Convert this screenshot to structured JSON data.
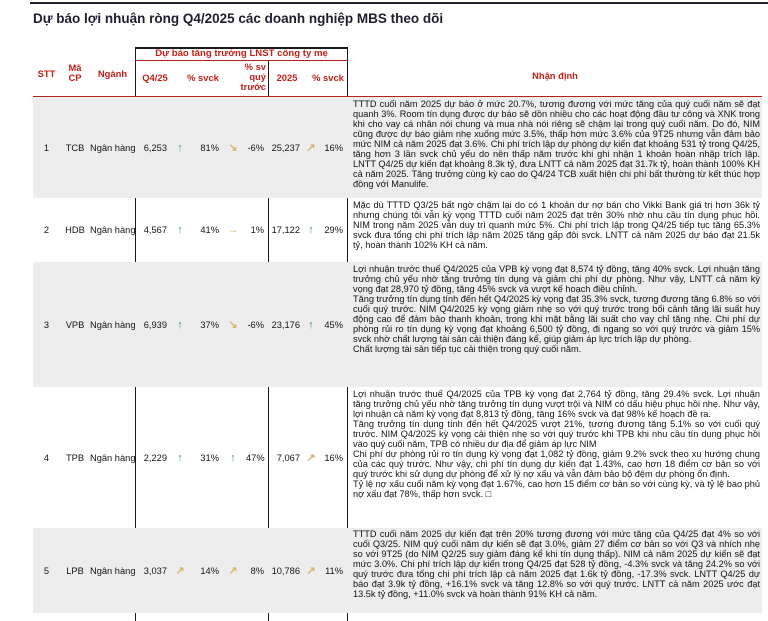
{
  "page": {
    "title": "Dự báo lợi nhuận ròng Q4/2025 các doanh nghiệp MBS theo dõi"
  },
  "colors": {
    "accent_red": "#C41F18",
    "arrow_green": "#45978A",
    "arrow_tan": "#D9B470",
    "row_shade_gray": "#EDEDED"
  },
  "table": {
    "headers": {
      "stt": "STT",
      "ma_cp": "Mã CP",
      "nganh": "Ngành",
      "group": "Dự báo tăng trưởng LNST công ty mẹ",
      "q4": "Q4/25",
      "svck": "% svck",
      "qoq": "% sv quý trước",
      "y2025": "2025",
      "svck2": "% svck",
      "nhan_dinh": "Nhận định"
    },
    "rows": [
      {
        "stt": "1",
        "code": "TCB",
        "sector": "Ngân hàng",
        "q4": "6,253",
        "q4_arrow": {
          "glyph": "↑",
          "tone": "g"
        },
        "svck": "81%",
        "qoq_arrow": {
          "glyph": "↘",
          "tone": "t"
        },
        "qoq": "-6%",
        "y2025": "25,237",
        "y_arrow": {
          "glyph": "↗",
          "tone": "t"
        },
        "y_svck": "16%",
        "comment": [
          "TTTD cuối năm 2025 dự báo ở mức 20.7%, tương đương với mức tăng của quý cuối năm sẽ đạt quanh 3%. Room tín dụng được dự báo sẽ dồn nhiều cho các hoạt động đầu tư công và XNK trong khi cho vay cá nhân nói chung và mua nhà nói riêng sẽ chậm lại trong quý cuối năm. Do đó, NIM cũng được dự báo giảm nhẹ xuống mức 3.5%, thấp hơn mức 3.6% của 9T25 nhưng vẫn đảm bảo mức NIM cả năm 2025 đạt 3.6%. Chi phí trích lập dự phòng dự kiến đạt khoảng 531 tỷ trong Q4/25, tăng hơn 3 lần svck chủ yếu do nền thấp năm trước khi ghi nhận 1 khoản hoàn nhập trích lập. LNTT Q4/25 dự kiến đạt khoảng 8.3k tỷ, đưa LNTT cả năm 2025 đạt 31.7k tỷ, hoàn thành 100% KH cả năm 2025. Tăng trưởng cùng kỳ cao do Q4/24 TCB xuất hiện chi phí bất thường từ kết thúc hợp đồng với Manulife."
        ]
      },
      {
        "stt": "2",
        "code": "HDB",
        "sector": "Ngân hàng",
        "q4": "4,567",
        "q4_arrow": {
          "glyph": "↑",
          "tone": "g"
        },
        "svck": "41%",
        "qoq_arrow": {
          "glyph": "→",
          "tone": "t"
        },
        "qoq": "1%",
        "y2025": "17,122",
        "y_arrow": {
          "glyph": "↑",
          "tone": "g"
        },
        "y_svck": "29%",
        "comment": [
          "Mặc dù TTTD Q3/25 bất ngờ chậm lại do có 1 khoản dư nợ bán cho Vikki Bank giá trị hơn 36k tỷ nhưng chúng tôi vẫn kỳ vọng TTTD cuối năm 2025 đạt trên 30% nhờ nhu cầu tín dụng phục hồi. NIM trong năm 2025 vẫn duy trì quanh mức 5%. Chi phí trích lập trong Q4/25 tiếp tục tăng 65.3% svck đưa tổng chi phí trích lập năm 2025 tăng gấp đôi svck. LNTT cả năm 2025 dự báo đạt 21.5k tỷ, hoàn thành 102% KH cả năm."
        ]
      },
      {
        "stt": "3",
        "code": "VPB",
        "sector": "Ngân hàng",
        "q4": "6,939",
        "q4_arrow": {
          "glyph": "↑",
          "tone": "g"
        },
        "svck": "37%",
        "qoq_arrow": {
          "glyph": "↘",
          "tone": "t"
        },
        "qoq": "-6%",
        "y2025": "23,176",
        "y_arrow": {
          "glyph": "↑",
          "tone": "g"
        },
        "y_svck": "45%",
        "comment": [
          "Lợi nhuận trước thuế Q4/2025 của VPB kỳ vọng đạt 8,574 tỷ đồng, tăng 40% svck. Lợi nhuận tăng trưởng chủ yếu nhờ tăng trưởng tín dụng và giảm chi phí dự phòng. Như vậy, LNTT cả năm kỳ vọng đạt 28,970 tỷ đồng, tăng 45% svck và vượt kế hoạch điều chỉnh.",
          "Tăng trưởng tín dụng tính đến hết Q4/2025 kỳ vọng đạt 35.3% svck, tương đương tăng 6.8% so với cuối quý trước. NIM Q4/2025 kỳ vọng giảm nhẹ so với quý trước trong bối cảnh tăng lãi suất huy động cao để đảm bảo thanh khoản, trong khi mặt bằng lãi suất cho vay chỉ tăng nhẹ. Chi phí dự phòng rủi ro tín dụng kỳ vọng đạt khoảng 6,500 tỷ đồng, đi ngang so với quý trước và giảm 15% svck nhờ chất lượng tài sản cải thiện đáng kể, giúp giảm áp lực trích lập dự phòng.",
          "Chất lượng tài sản tiếp tục cải thiện trong quý cuối năm."
        ]
      },
      {
        "stt": "4",
        "code": "TPB",
        "sector": "Ngân hàng",
        "q4": "2,229",
        "q4_arrow": {
          "glyph": "↑",
          "tone": "g"
        },
        "svck": "31%",
        "qoq_arrow": {
          "glyph": "↑",
          "tone": "g"
        },
        "qoq": "47%",
        "y2025": "7,067",
        "y_arrow": {
          "glyph": "↗",
          "tone": "t"
        },
        "y_svck": "16%",
        "comment": [
          "Lợi nhuận trước thuế Q4/2025 của TPB kỳ vọng đạt 2,764 tỷ đồng, tăng 29.4% svck. Lợi nhuận tăng trưởng chủ yếu nhờ tăng trưởng tín dụng vượt trội và NIM có dấu hiệu phục hồi nhẹ. Như vậy, lợi nhuận cả năm kỳ vọng đạt 8,813 tỷ đồng, tăng 16% svck và đạt 98% kế hoạch đề ra.",
          "Tăng trưởng tín dụng tính đến hết Q4/2025 vượt 21%, tương đương tăng 5.1% so với cuối quý trước. NIM Q4/2025 kỳ vọng cải thiện nhẹ so với quý trước khi TPB khi nhu cầu tín dụng phục hồi vào quý cuối năm, TPB có nhiều dư địa để giảm áp lực NIM",
          "Chi phí dự phòng rủi ro tín dụng kỳ vọng đạt 1,082 tỷ đồng, giảm 9.2% svck theo xu hướng chung của các quý trước. Như vậy, chi phí tín dụng dự kiến đạt 1.43%, cao hơn 18 điểm cơ bản so với quý trước khi sử dụng dự phòng để xử lý nợ xấu và vẫn đảm bảo bộ đệm dự phòng ổn định.",
          "Tỷ lệ nợ xấu cuối năm kỳ vọng đạt 1.67%, cao hơn 15 điểm cơ bản so với cùng kỳ, và tỷ lệ bao phủ nợ xấu đạt 78%, thấp hơn svck. □"
        ]
      },
      {
        "stt": "5",
        "code": "LPB",
        "sector": "Ngân hàng",
        "q4": "3,037",
        "q4_arrow": {
          "glyph": "↗",
          "tone": "t"
        },
        "svck": "14%",
        "qoq_arrow": {
          "glyph": "↗",
          "tone": "t"
        },
        "qoq": "8%",
        "y2025": "10,786",
        "y_arrow": {
          "glyph": "↗",
          "tone": "t"
        },
        "y_svck": "11%",
        "comment": [
          "TTTD cuối năm 2025 dự kiến đạt trên 20% tương đương với mức tăng của Q4/25 đạt 4% so với cuối Q3/25. NIM quý cuối năm dự kiến sẽ đạt 3.0%, giảm 27 điểm cơ bản so với Q3 và nhích nhẹ so với 9T25 (do NIM Q2/25 suy giảm đáng kể khi tín dụng thấp). NIM cả năm 2025 dự kiến sẽ đạt mức 3.0%. Chi phí trích lập dự kiến trong Q4/25 đạt 528 tỷ đồng, -4.3% svck và tăng 24.2% so với quý trước đưa tổng chi phí trích lập cả năm 2025 đạt 1.6k tỷ đồng, -17.3% svck. LNTT Q4/25 dự báo đạt 3.9k tỷ đồng, +16.1% svck và tăng 12.8% so với quý trước. LNTT cả năm 2025 ước đạt 13.5k tỷ đồng, +11.0% svck và hoàn thành 91% KH cả năm."
        ]
      }
    ]
  }
}
